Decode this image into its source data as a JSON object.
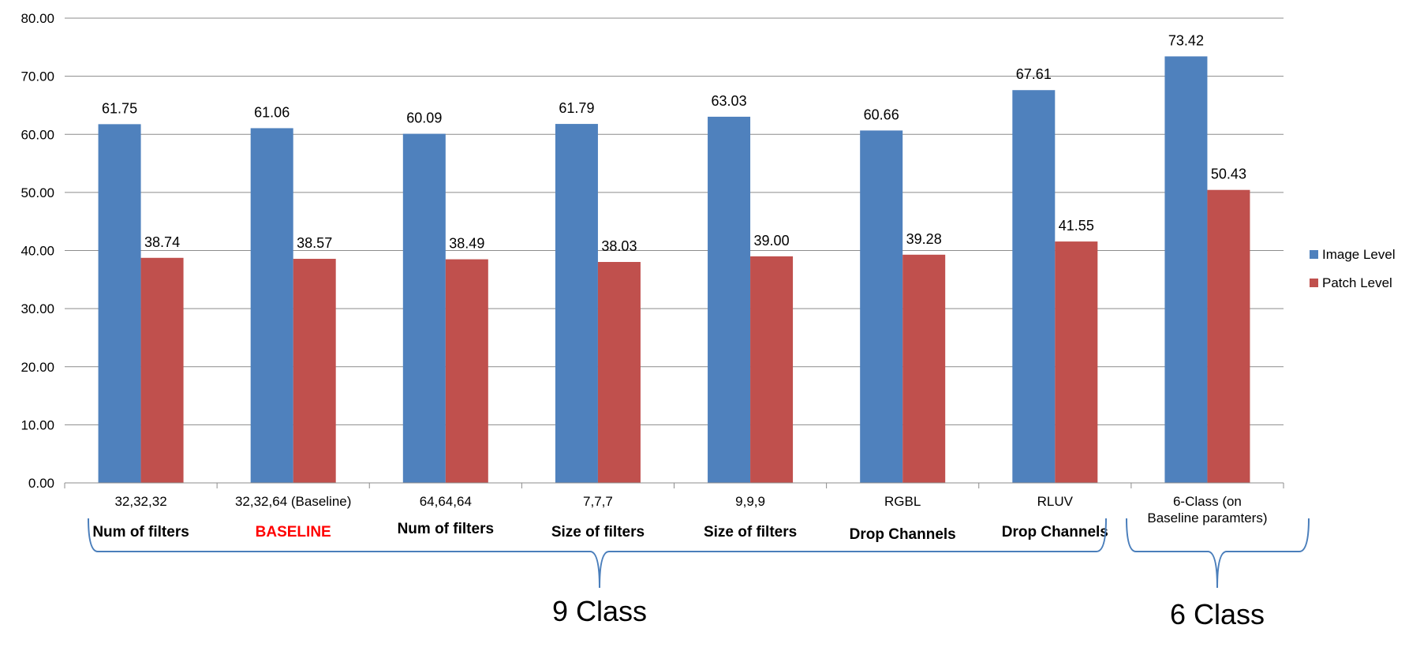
{
  "chart_data": {
    "type": "bar",
    "categories": [
      "32,32,32",
      "32,32,64 (Baseline)",
      "64,64,64",
      "7,7,7",
      "9,9,9",
      "RGBL",
      "RLUV",
      "6-Class (on Baseline paramters)"
    ],
    "series": [
      {
        "name": "Image Level",
        "color": "#4F81BD",
        "values": [
          61.75,
          61.06,
          60.09,
          61.79,
          63.03,
          60.66,
          67.61,
          73.42
        ],
        "labels": [
          "61.75",
          "61.06",
          "60.09",
          "61.79",
          "63.03",
          "60.66",
          "67.61",
          "73.42"
        ]
      },
      {
        "name": "Patch Level",
        "color": "#C0504D",
        "values": [
          38.74,
          38.57,
          38.49,
          38.03,
          39.0,
          39.28,
          41.55,
          50.43
        ],
        "labels": [
          "38.74",
          "38.57",
          "38.49",
          "38.03",
          "39.00",
          "39.28",
          "41.55",
          "50.43"
        ]
      }
    ],
    "ylim": [
      0,
      80
    ],
    "yticks": [
      "0.00",
      "10.00",
      "20.00",
      "30.00",
      "40.00",
      "50.00",
      "60.00",
      "70.00",
      "80.00"
    ],
    "grid": true,
    "legend_position": "right",
    "group_labels": [
      {
        "text": "Num of filters",
        "color": "#000000"
      },
      {
        "text": "BASELINE",
        "color": "#FF0000"
      },
      {
        "text": "Num of filters",
        "color": "#000000"
      },
      {
        "text": "Size of filters",
        "color": "#000000"
      },
      {
        "text": "Size of filters",
        "color": "#000000"
      },
      {
        "text": "Drop Channels",
        "color": "#000000"
      },
      {
        "text": "Drop Channels",
        "color": "#000000"
      }
    ],
    "class_labels": [
      "9 Class",
      "6 Class"
    ],
    "brace_color": "#4A7EBB"
  }
}
